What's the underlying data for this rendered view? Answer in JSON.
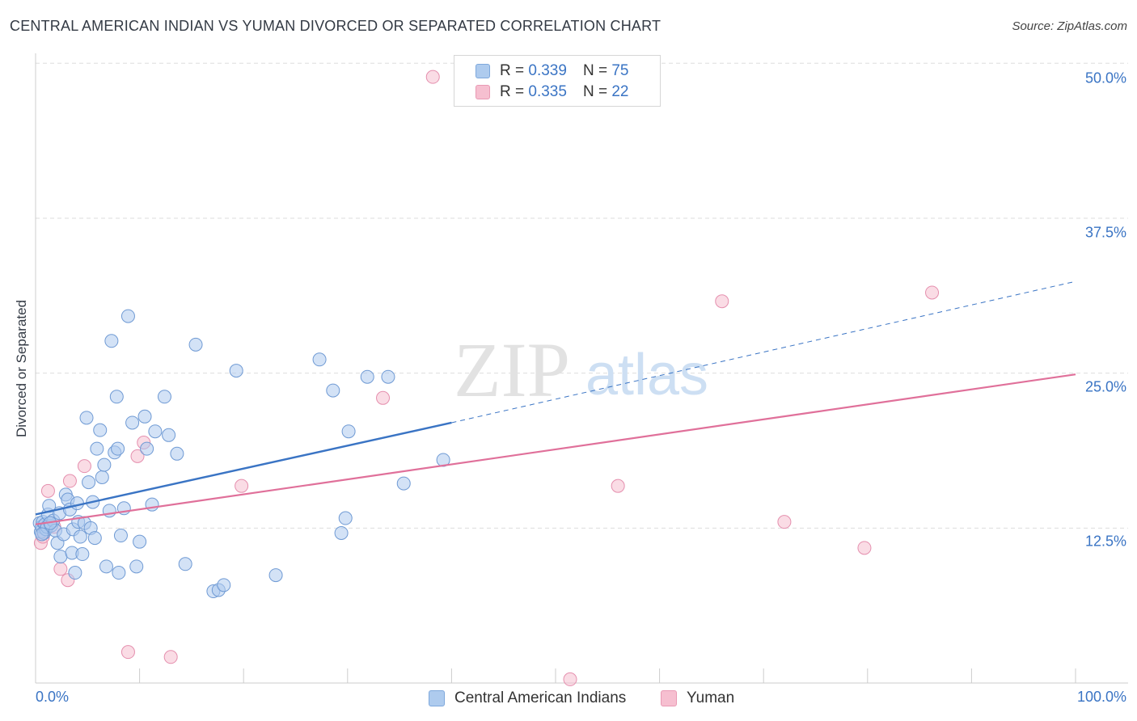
{
  "title": "CENTRAL AMERICAN INDIAN VS YUMAN DIVORCED OR SEPARATED CORRELATION CHART",
  "source": "Source: ZipAtlas.com",
  "watermark": {
    "zip": "ZIP",
    "atlas": "atlas"
  },
  "legend": {
    "blue": {
      "r_label": "R =",
      "r_value": "0.339",
      "n_label": "N =",
      "n_value": "75"
    },
    "pink": {
      "r_label": "R =",
      "r_value": "0.335",
      "n_label": "N =",
      "n_value": "22"
    }
  },
  "colors": {
    "blue": "#3a74c4",
    "blue_fill": "#aecbee",
    "pink": "#e0709a",
    "pink_fill": "#f6bfd0",
    "grid": "#dddddd"
  },
  "chart_data": {
    "type": "scatter",
    "title": "CENTRAL AMERICAN INDIAN VS YUMAN DIVORCED OR SEPARATED CORRELATION CHART",
    "xlabel": "",
    "ylabel": "Divorced or Separated",
    "xlim": [
      0,
      100
    ],
    "ylim": [
      0,
      50.8
    ],
    "x_tick_labels": [
      "0.0%",
      "100.0%"
    ],
    "y_ticks": [
      12.5,
      25.0,
      37.5,
      50.0
    ],
    "y_tick_labels": [
      "12.5%",
      "25.0%",
      "37.5%",
      "50.0%"
    ],
    "series": [
      {
        "name": "Central American Indians",
        "color": "#3a74c4",
        "points": [
          [
            0.4,
            12.9
          ],
          [
            0.5,
            12.2
          ],
          [
            0.6,
            12.6
          ],
          [
            0.7,
            13.0
          ],
          [
            0.8,
            12.1
          ],
          [
            0.9,
            12.8
          ],
          [
            1.0,
            12.4
          ],
          [
            1.1,
            12.6
          ],
          [
            1.2,
            13.6
          ],
          [
            1.3,
            14.3
          ],
          [
            1.5,
            12.7
          ],
          [
            1.7,
            13.1
          ],
          [
            1.9,
            12.3
          ],
          [
            2.1,
            11.3
          ],
          [
            2.3,
            13.7
          ],
          [
            2.4,
            10.2
          ],
          [
            2.7,
            12.0
          ],
          [
            2.9,
            15.2
          ],
          [
            3.1,
            14.8
          ],
          [
            3.3,
            14.0
          ],
          [
            3.5,
            10.5
          ],
          [
            3.6,
            12.4
          ],
          [
            3.8,
            8.9
          ],
          [
            4.0,
            14.5
          ],
          [
            4.1,
            13.0
          ],
          [
            4.3,
            11.8
          ],
          [
            4.5,
            10.4
          ],
          [
            4.7,
            12.9
          ],
          [
            4.9,
            21.4
          ],
          [
            5.1,
            16.2
          ],
          [
            5.3,
            12.5
          ],
          [
            5.5,
            14.6
          ],
          [
            5.7,
            11.7
          ],
          [
            5.9,
            18.9
          ],
          [
            6.2,
            20.4
          ],
          [
            6.4,
            16.6
          ],
          [
            6.6,
            17.6
          ],
          [
            6.8,
            9.4
          ],
          [
            7.1,
            13.9
          ],
          [
            7.3,
            27.6
          ],
          [
            7.6,
            18.6
          ],
          [
            7.8,
            23.1
          ],
          [
            7.9,
            18.9
          ],
          [
            8.0,
            8.9
          ],
          [
            8.2,
            11.9
          ],
          [
            8.5,
            14.1
          ],
          [
            8.9,
            29.6
          ],
          [
            9.3,
            21.0
          ],
          [
            9.7,
            9.4
          ],
          [
            10.0,
            11.4
          ],
          [
            10.5,
            21.5
          ],
          [
            10.7,
            18.9
          ],
          [
            11.2,
            14.4
          ],
          [
            11.5,
            20.3
          ],
          [
            12.4,
            23.1
          ],
          [
            12.8,
            20.0
          ],
          [
            13.6,
            18.5
          ],
          [
            14.4,
            9.6
          ],
          [
            15.4,
            27.3
          ],
          [
            17.1,
            7.4
          ],
          [
            17.6,
            7.5
          ],
          [
            18.1,
            7.9
          ],
          [
            19.3,
            25.2
          ],
          [
            23.1,
            8.7
          ],
          [
            27.3,
            26.1
          ],
          [
            28.6,
            23.6
          ],
          [
            29.4,
            12.1
          ],
          [
            29.8,
            13.3
          ],
          [
            30.1,
            20.3
          ],
          [
            31.9,
            24.7
          ],
          [
            33.9,
            24.7
          ],
          [
            35.4,
            16.1
          ],
          [
            39.2,
            18.0
          ],
          [
            0.6,
            12.0
          ],
          [
            1.4,
            12.9
          ]
        ],
        "trend": {
          "x0": 0,
          "y0": 13.6,
          "x1": 40,
          "y1": 21.0,
          "dashed_to_x": 100,
          "dashed_to_y": 32.4
        }
      },
      {
        "name": "Yuman",
        "color": "#e0709a",
        "points": [
          [
            0.5,
            11.3
          ],
          [
            0.7,
            11.8
          ],
          [
            1.2,
            15.5
          ],
          [
            1.8,
            12.6
          ],
          [
            2.4,
            9.2
          ],
          [
            3.1,
            8.3
          ],
          [
            3.3,
            16.3
          ],
          [
            4.7,
            17.5
          ],
          [
            8.9,
            2.5
          ],
          [
            9.8,
            18.3
          ],
          [
            10.4,
            19.4
          ],
          [
            13.0,
            2.1
          ],
          [
            19.8,
            15.9
          ],
          [
            33.4,
            23.0
          ],
          [
            38.2,
            48.9
          ],
          [
            51.4,
            0.3
          ],
          [
            56.0,
            15.9
          ],
          [
            66.0,
            30.8
          ],
          [
            72.0,
            13.0
          ],
          [
            79.7,
            10.9
          ],
          [
            86.2,
            31.5
          ],
          [
            0.8,
            12.2
          ]
        ],
        "trend": {
          "x0": 0,
          "y0": 12.8,
          "x1": 100,
          "y1": 24.9
        }
      }
    ]
  },
  "bottom_legend": {
    "blue_label": "Central American Indians",
    "pink_label": "Yuman"
  }
}
